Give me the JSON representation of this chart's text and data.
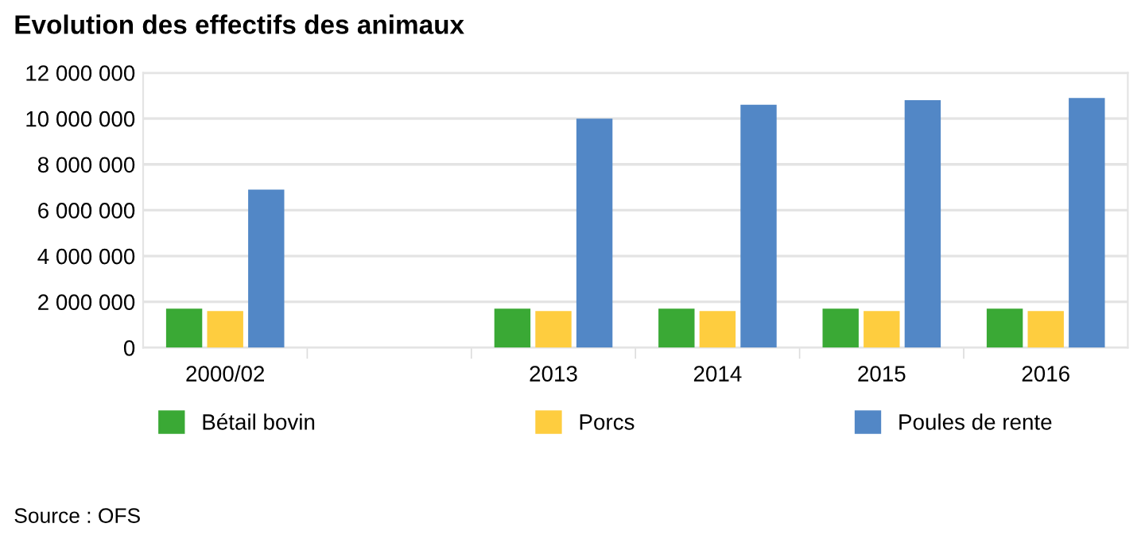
{
  "chart_data": {
    "type": "bar",
    "title": "Evolution des effectifs des animaux",
    "categories": [
      "2000/02",
      null,
      "2013",
      "2014",
      "2015",
      "2016"
    ],
    "series": [
      {
        "name": "Bétail bovin",
        "color": "#3aa935",
        "values": [
          1700000,
          null,
          1700000,
          1700000,
          1700000,
          1700000
        ]
      },
      {
        "name": "Porcs",
        "color": "#fecd3f",
        "values": [
          1600000,
          null,
          1600000,
          1600000,
          1600000,
          1600000
        ]
      },
      {
        "name": "Poules de rente",
        "color": "#5287c6",
        "values": [
          6900000,
          null,
          10000000,
          10600000,
          10800000,
          10900000
        ]
      }
    ],
    "ylim": [
      0,
      12000000
    ],
    "yticks": [
      0,
      {
        "value": 2000000,
        "label": "2 000 000"
      },
      {
        "value": 4000000,
        "label": "4 000 000"
      },
      {
        "value": 6000000,
        "label": "6 000 000"
      },
      {
        "value": 8000000,
        "label": "8 000 000"
      },
      {
        "value": 10000000,
        "label": "10 000 000"
      },
      {
        "value": 12000000,
        "label": "12 000 000"
      }
    ],
    "grid": "y",
    "legend": "bottom",
    "annotations": [
      "Source : OFS"
    ]
  }
}
